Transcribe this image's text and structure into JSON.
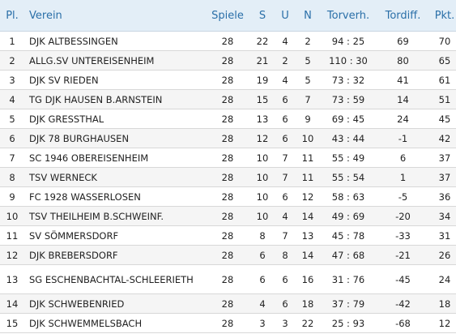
{
  "headers": {
    "pl": "Pl.",
    "verein": "Verein",
    "spiele": "Spiele",
    "s": "S",
    "u": "U",
    "n": "N",
    "torverh": "Torverh.",
    "tordiff": "Tordiff.",
    "pkt": "Pkt."
  },
  "rows": [
    {
      "pl": "1",
      "verein": "DJK ALTBESSINGEN",
      "spiele": "28",
      "s": "22",
      "u": "4",
      "n": "2",
      "torverh": "94 : 25",
      "tordiff": "69",
      "pkt": "70"
    },
    {
      "pl": "2",
      "verein": "ALLG.SV UNTEREISENHEIM",
      "spiele": "28",
      "s": "21",
      "u": "2",
      "n": "5",
      "torverh": "110 : 30",
      "tordiff": "80",
      "pkt": "65"
    },
    {
      "pl": "3",
      "verein": "DJK SV RIEDEN",
      "spiele": "28",
      "s": "19",
      "u": "4",
      "n": "5",
      "torverh": "73 : 32",
      "tordiff": "41",
      "pkt": "61"
    },
    {
      "pl": "4",
      "verein": "TG DJK HAUSEN B.ARNSTEIN",
      "spiele": "28",
      "s": "15",
      "u": "6",
      "n": "7",
      "torverh": "73 : 59",
      "tordiff": "14",
      "pkt": "51"
    },
    {
      "pl": "5",
      "verein": "DJK GRESSTHAL",
      "spiele": "28",
      "s": "13",
      "u": "6",
      "n": "9",
      "torverh": "69 : 45",
      "tordiff": "24",
      "pkt": "45"
    },
    {
      "pl": "6",
      "verein": "DJK 78 BURGHAUSEN",
      "spiele": "28",
      "s": "12",
      "u": "6",
      "n": "10",
      "torverh": "43 : 44",
      "tordiff": "-1",
      "pkt": "42"
    },
    {
      "pl": "7",
      "verein": "SC 1946 OBEREISENHEIM",
      "spiele": "28",
      "s": "10",
      "u": "7",
      "n": "11",
      "torverh": "55 : 49",
      "tordiff": "6",
      "pkt": "37"
    },
    {
      "pl": "8",
      "verein": "TSV WERNECK",
      "spiele": "28",
      "s": "10",
      "u": "7",
      "n": "11",
      "torverh": "55 : 54",
      "tordiff": "1",
      "pkt": "37"
    },
    {
      "pl": "9",
      "verein": "FC 1928 WASSERLOSEN",
      "spiele": "28",
      "s": "10",
      "u": "6",
      "n": "12",
      "torverh": "58 : 63",
      "tordiff": "-5",
      "pkt": "36"
    },
    {
      "pl": "10",
      "verein": "TSV THEILHEIM B.SCHWEINF.",
      "spiele": "28",
      "s": "10",
      "u": "4",
      "n": "14",
      "torverh": "49 : 69",
      "tordiff": "-20",
      "pkt": "34"
    },
    {
      "pl": "11",
      "verein": "SV SÖMMERSDORF",
      "spiele": "28",
      "s": "8",
      "u": "7",
      "n": "13",
      "torverh": "45 : 78",
      "tordiff": "-33",
      "pkt": "31"
    },
    {
      "pl": "12",
      "verein": "DJK BREBERSDORF",
      "spiele": "28",
      "s": "6",
      "u": "8",
      "n": "14",
      "torverh": "47 : 68",
      "tordiff": "-21",
      "pkt": "26"
    },
    {
      "pl": "13",
      "verein": "SG ESCHENBACHTAL-SCHLEERIETH",
      "spiele": "28",
      "s": "6",
      "u": "6",
      "n": "16",
      "torverh": "31 : 76",
      "tordiff": "-45",
      "pkt": "24"
    },
    {
      "pl": "14",
      "verein": "DJK SCHWEBENRIED",
      "spiele": "28",
      "s": "4",
      "u": "6",
      "n": "18",
      "torverh": "37 : 79",
      "tordiff": "-42",
      "pkt": "18"
    },
    {
      "pl": "15",
      "verein": "DJK SCHWEMMELSBACH",
      "spiele": "28",
      "s": "3",
      "u": "3",
      "n": "22",
      "torverh": "25 : 93",
      "tordiff": "-68",
      "pkt": "12"
    }
  ]
}
